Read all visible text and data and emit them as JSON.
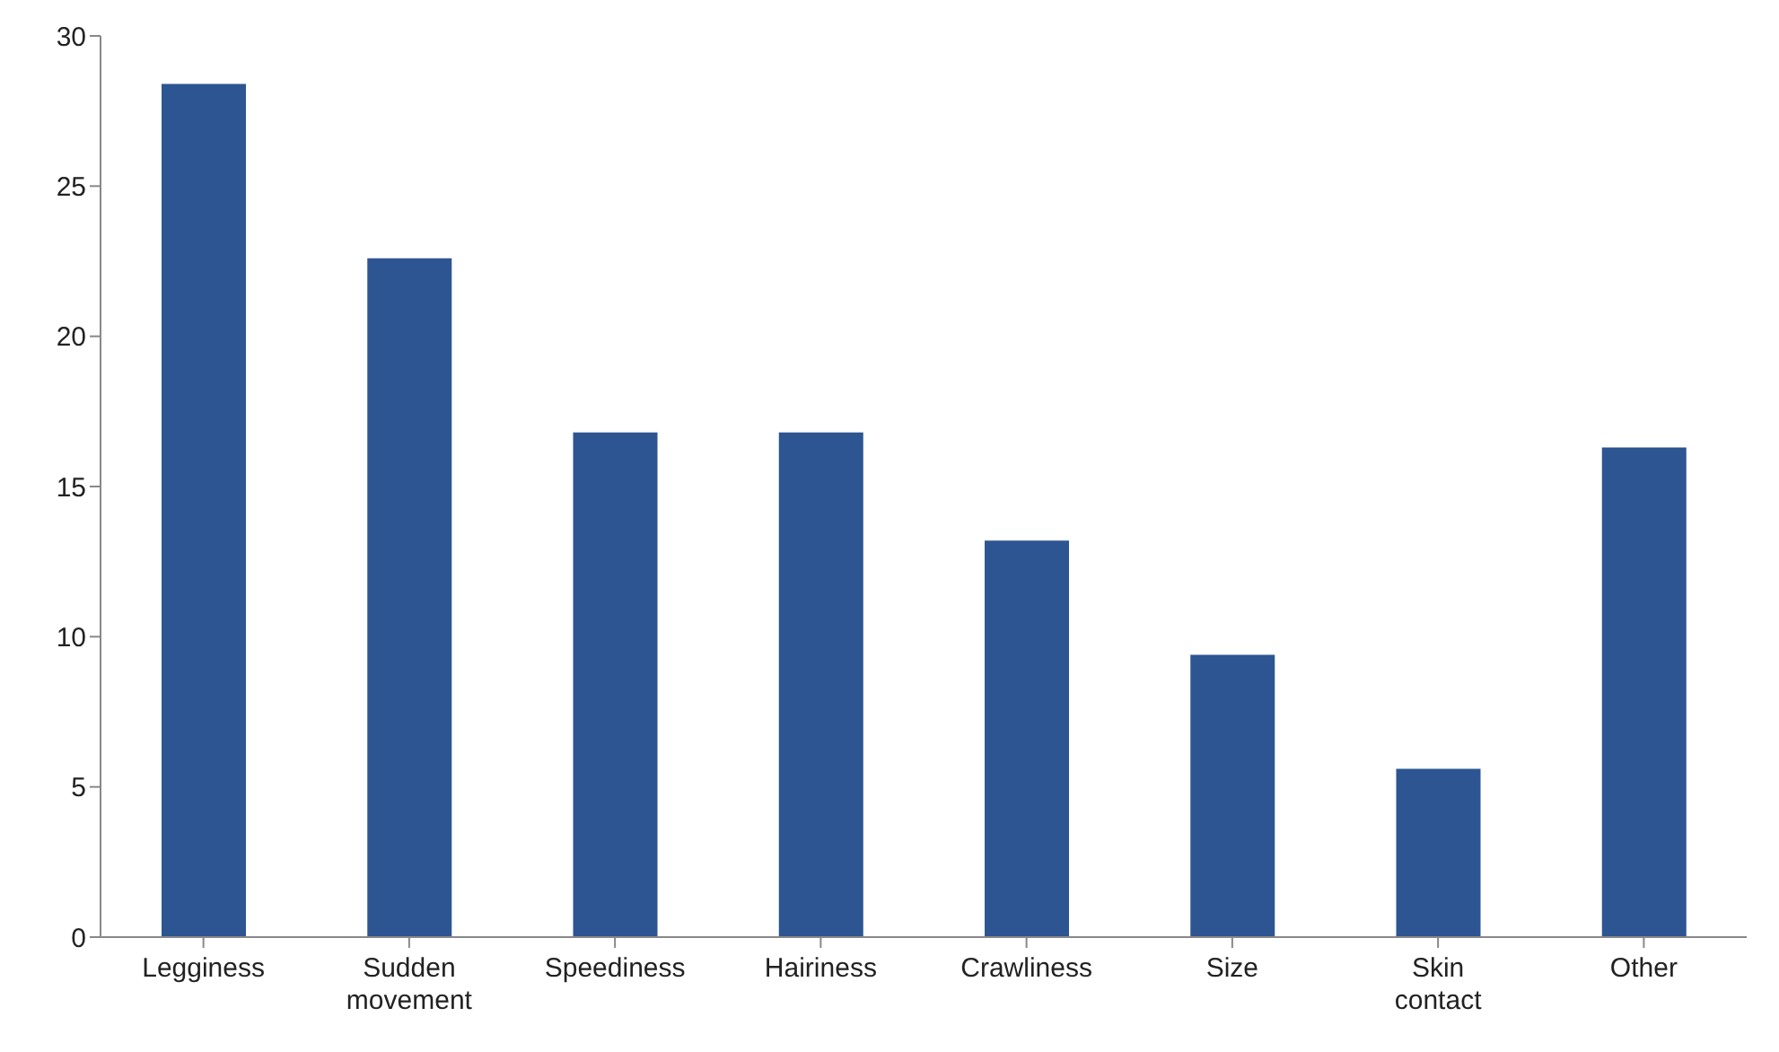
{
  "chart_data": {
    "type": "bar",
    "categories": [
      "Legginess",
      "Sudden movement",
      "Speediness",
      "Hairiness",
      "Crawliness",
      "Size",
      "Skin contact",
      "Other"
    ],
    "values": [
      28.4,
      22.6,
      16.8,
      16.8,
      13.2,
      9.4,
      5.6,
      16.3
    ],
    "color": "#2d5592",
    "ylim": [
      0,
      30
    ],
    "yticks": [
      0,
      5,
      10,
      15,
      20,
      25,
      30
    ],
    "grid": false,
    "legend": false
  }
}
